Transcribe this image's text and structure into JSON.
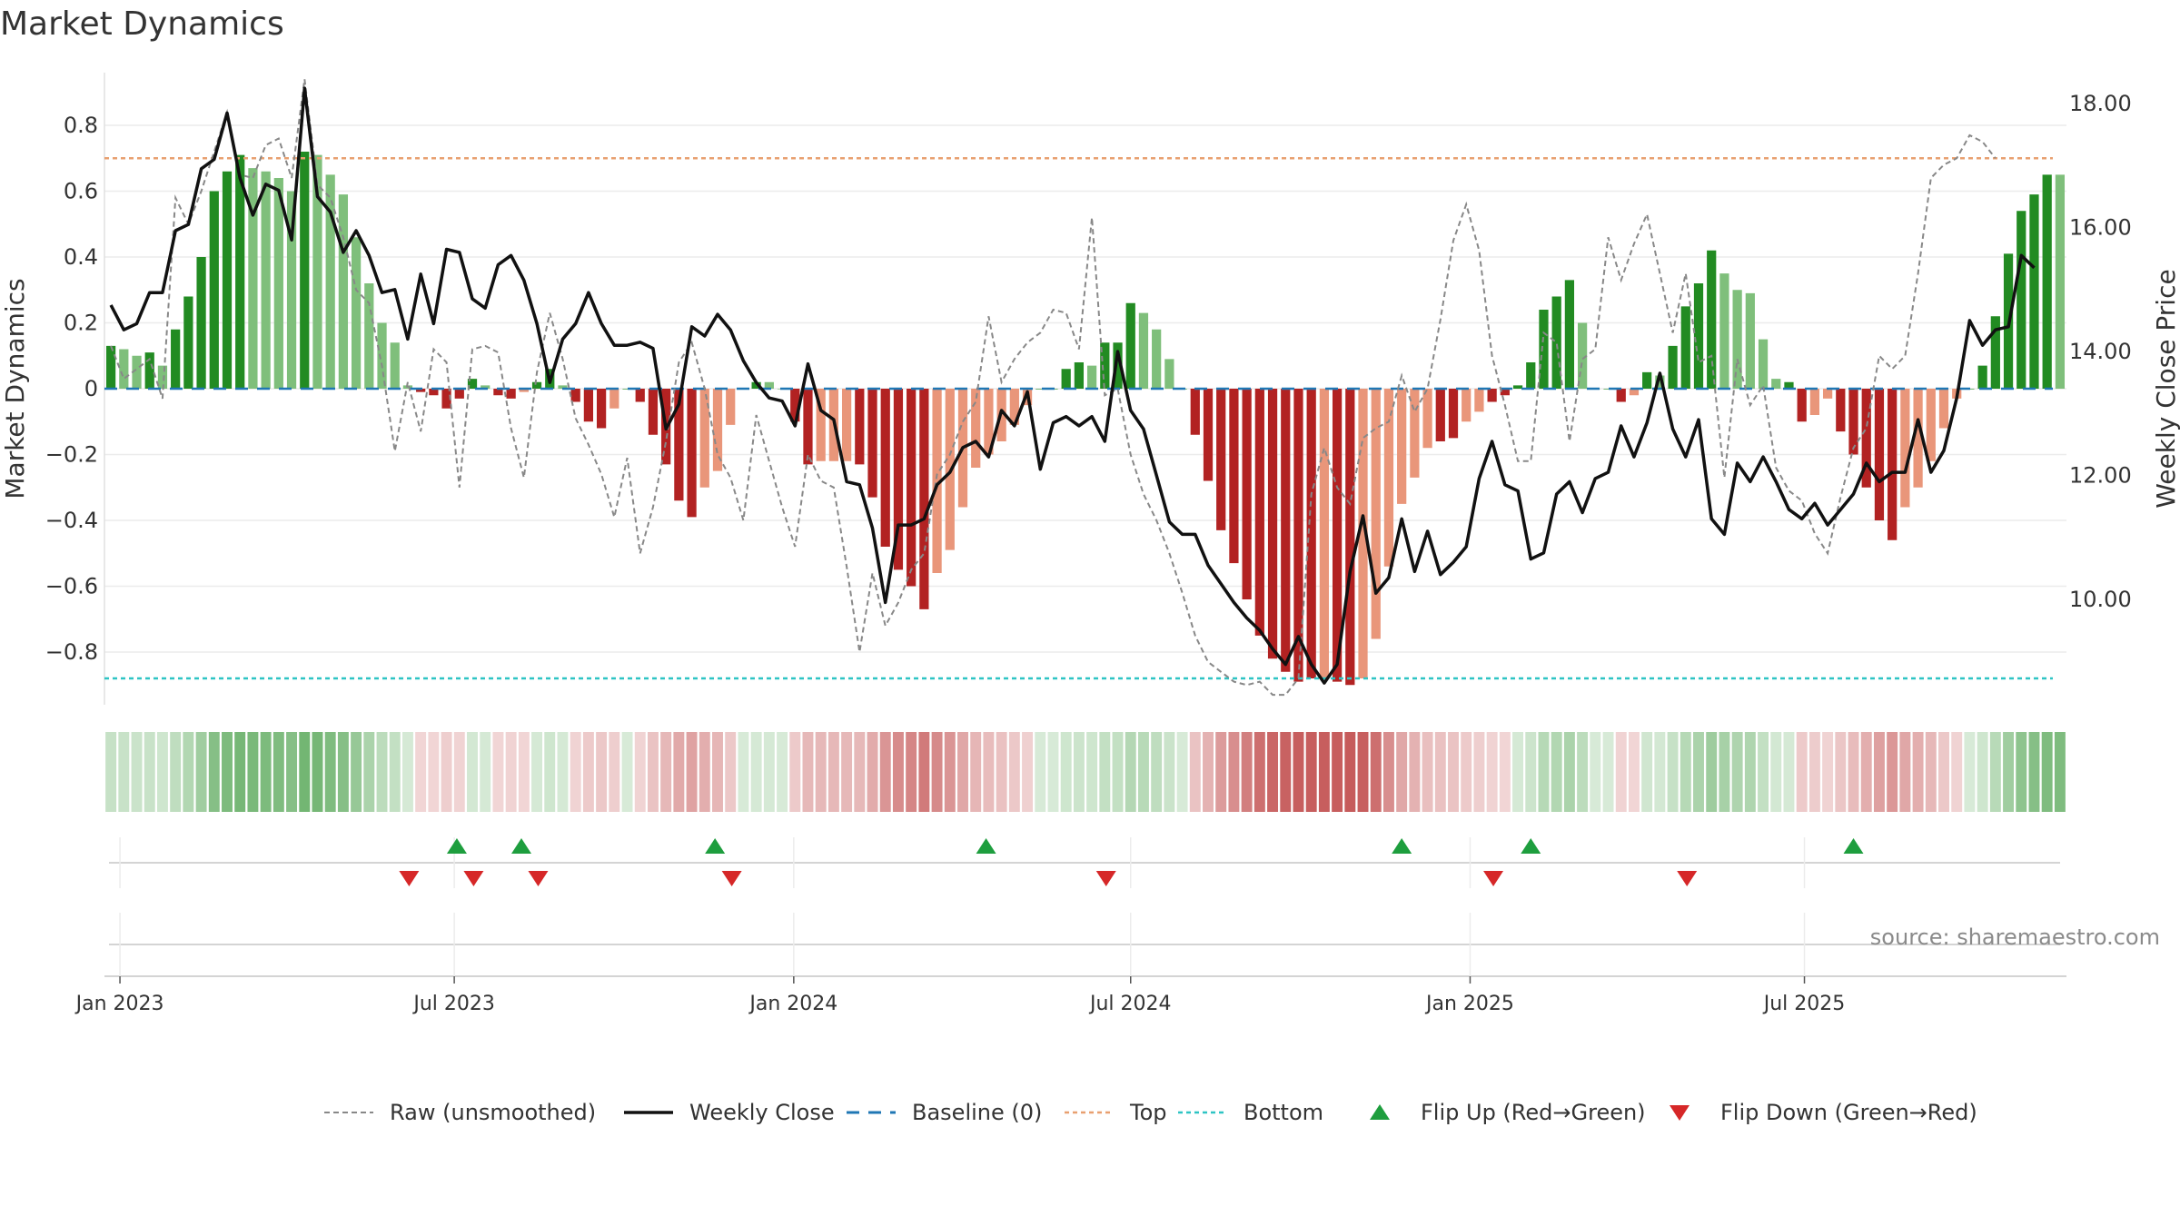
{
  "title": "Market Dynamics",
  "source": "source: sharemaestro.com",
  "chart_data": {
    "type": "bar",
    "left_axis": {
      "label": "Market Dynamics",
      "ticks": [
        "0.8",
        "0.6",
        "0.4",
        "0.2",
        "0",
        "−0.2",
        "−0.4",
        "−0.6",
        "−0.8"
      ],
      "tick_values": [
        0.8,
        0.6,
        0.4,
        0.2,
        0,
        -0.2,
        -0.4,
        -0.6,
        -0.8
      ],
      "range": [
        -0.96,
        0.96
      ]
    },
    "right_axis": {
      "label": "Weekly Close Price",
      "ticks": [
        "18.00",
        "16.00",
        "14.00",
        "12.00",
        "10.00"
      ],
      "tick_values": [
        18,
        16,
        14,
        12,
        10
      ],
      "range": [
        8.3,
        18.5
      ]
    },
    "x_ticks": [
      "Jan 2023",
      "Jul 2023",
      "Jan 2024",
      "Jul 2024",
      "Jan 2025",
      "Jul 2025"
    ],
    "x_tick_weeks": [
      0.7,
      26.6,
      52.9,
      79.0,
      105.3,
      131.2
    ],
    "top_line": 0.7,
    "bottom_line": -0.88,
    "grid": true,
    "legend_position": "bottom",
    "colors": {
      "strong_up": "#228b22",
      "weak_up": "#7fbf7b",
      "strong_down": "#b22222",
      "weak_down": "#e9967a",
      "raw": "#888888",
      "close": "#111111",
      "baseline": "#1f77b4",
      "top": "#e8a070",
      "bottom": "#2ec4c4",
      "flip_up": "#1e9e3e",
      "flip_down": "#d62728"
    },
    "bars": [
      0.13,
      0.12,
      0.1,
      0.11,
      0.07,
      0.18,
      0.28,
      0.4,
      0.6,
      0.66,
      0.71,
      0.67,
      0.66,
      0.64,
      0.6,
      0.72,
      0.71,
      0.65,
      0.59,
      0.46,
      0.32,
      0.2,
      0.14,
      0.01,
      -0.01,
      -0.02,
      -0.06,
      -0.03,
      0.03,
      0.01,
      -0.02,
      -0.03,
      -0.01,
      0.02,
      0.06,
      0.01,
      -0.04,
      -0.1,
      -0.12,
      -0.06,
      0.0,
      -0.04,
      -0.14,
      -0.23,
      -0.34,
      -0.39,
      -0.3,
      -0.25,
      -0.11,
      0.0,
      0.02,
      0.02,
      0.0,
      -0.1,
      -0.23,
      -0.22,
      -0.22,
      -0.22,
      -0.23,
      -0.33,
      -0.48,
      -0.55,
      -0.6,
      -0.67,
      -0.56,
      -0.49,
      -0.36,
      -0.24,
      -0.2,
      -0.16,
      -0.11,
      -0.05,
      0.0,
      0.0,
      0.06,
      0.08,
      0.07,
      0.14,
      0.14,
      0.26,
      0.23,
      0.18,
      0.09,
      0.0,
      -0.14,
      -0.28,
      -0.43,
      -0.53,
      -0.64,
      -0.75,
      -0.82,
      -0.86,
      -0.89,
      -0.88,
      -0.88,
      -0.89,
      -0.9,
      -0.88,
      -0.76,
      -0.54,
      -0.35,
      -0.27,
      -0.18,
      -0.16,
      -0.15,
      -0.1,
      -0.07,
      -0.04,
      -0.02,
      0.01,
      0.08,
      0.24,
      0.28,
      0.33,
      0.2,
      0.0,
      0.0,
      -0.04,
      -0.02,
      0.05,
      0.04,
      0.13,
      0.25,
      0.32,
      0.42,
      0.35,
      0.3,
      0.29,
      0.15,
      0.03,
      0.02,
      -0.1,
      -0.08,
      -0.03,
      -0.13,
      -0.2,
      -0.3,
      -0.4,
      -0.46,
      -0.36,
      -0.3,
      -0.22,
      -0.12,
      -0.03,
      0.0,
      0.07,
      0.22,
      0.41,
      0.54,
      0.59,
      0.65,
      0.65
    ],
    "bar_strong": [
      1,
      0,
      0,
      1,
      0,
      1,
      1,
      1,
      1,
      1,
      1,
      0,
      0,
      0,
      0,
      1,
      0,
      0,
      0,
      0,
      0,
      0,
      0,
      0,
      1,
      1,
      1,
      1,
      1,
      0,
      1,
      1,
      0,
      1,
      1,
      0,
      1,
      1,
      1,
      0,
      1,
      1,
      1,
      1,
      1,
      1,
      0,
      0,
      0,
      1,
      1,
      0,
      0,
      1,
      1,
      0,
      0,
      0,
      1,
      1,
      1,
      1,
      1,
      1,
      0,
      0,
      0,
      0,
      0,
      0,
      0,
      0,
      1,
      1,
      1,
      1,
      0,
      1,
      1,
      1,
      0,
      0,
      0,
      1,
      1,
      1,
      1,
      1,
      1,
      1,
      1,
      1,
      1,
      1,
      0,
      1,
      1,
      0,
      0,
      0,
      0,
      0,
      0,
      1,
      1,
      0,
      0,
      1,
      1,
      1,
      1,
      1,
      1,
      1,
      0,
      0,
      1,
      1,
      0,
      1,
      0,
      1,
      1,
      1,
      1,
      0,
      0,
      0,
      0,
      0,
      1,
      1,
      0,
      0,
      1,
      1,
      1,
      1,
      1,
      0,
      0,
      0,
      0,
      0,
      1,
      1,
      1,
      1,
      1,
      1,
      1
    ],
    "raw": [
      0.13,
      0.03,
      0.06,
      0.09,
      -0.03,
      0.58,
      0.5,
      0.6,
      0.72,
      0.84,
      0.65,
      0.64,
      0.74,
      0.76,
      0.64,
      0.94,
      0.62,
      0.58,
      0.46,
      0.3,
      0.26,
      0.07,
      -0.19,
      0.02,
      -0.13,
      0.12,
      0.08,
      -0.3,
      0.12,
      0.13,
      0.11,
      -0.12,
      -0.27,
      0.05,
      0.23,
      0.09,
      -0.09,
      -0.17,
      -0.26,
      -0.39,
      -0.21,
      -0.5,
      -0.36,
      -0.16,
      0.08,
      0.14,
      0.0,
      -0.2,
      -0.27,
      -0.4,
      -0.08,
      -0.22,
      -0.36,
      -0.48,
      -0.2,
      -0.28,
      -0.3,
      -0.54,
      -0.8,
      -0.56,
      -0.72,
      -0.65,
      -0.55,
      -0.5,
      -0.26,
      -0.2,
      -0.1,
      -0.04,
      0.22,
      0.02,
      0.09,
      0.14,
      0.17,
      0.24,
      0.23,
      0.12,
      0.52,
      -0.02,
      0.0,
      -0.2,
      -0.32,
      -0.4,
      -0.5,
      -0.62,
      -0.75,
      -0.83,
      -0.86,
      -0.89,
      -0.9,
      -0.89,
      -0.93,
      -0.93,
      -0.88,
      -0.32,
      -0.18,
      -0.3,
      -0.35,
      -0.15,
      -0.12,
      -0.1,
      0.04,
      -0.07,
      0.0,
      0.21,
      0.45,
      0.56,
      0.42,
      0.1,
      -0.05,
      -0.22,
      -0.22,
      0.17,
      0.14,
      -0.16,
      0.09,
      0.12,
      0.46,
      0.33,
      0.44,
      0.53,
      0.35,
      0.17,
      0.35,
      0.08,
      0.1,
      -0.27,
      0.09,
      -0.05,
      0.01,
      -0.24,
      -0.31,
      -0.34,
      -0.44,
      -0.5,
      -0.33,
      -0.18,
      -0.12,
      0.1,
      0.06,
      0.1,
      0.35,
      0.64,
      0.68,
      0.7,
      0.77,
      0.75,
      0.7
    ],
    "close": [
      14.75,
      14.35,
      14.45,
      14.95,
      14.95,
      15.95,
      16.05,
      16.95,
      17.1,
      17.85,
      16.8,
      16.2,
      16.7,
      16.6,
      15.8,
      18.25,
      16.5,
      16.25,
      15.6,
      15.95,
      15.55,
      14.95,
      15.0,
      14.2,
      15.25,
      14.45,
      15.65,
      15.6,
      14.85,
      14.7,
      15.4,
      15.55,
      15.15,
      14.45,
      13.5,
      14.2,
      14.45,
      14.95,
      14.45,
      14.1,
      14.1,
      14.15,
      14.05,
      12.75,
      13.15,
      14.4,
      14.25,
      14.6,
      14.35,
      13.85,
      13.5,
      13.25,
      13.2,
      12.8,
      13.8,
      13.05,
      12.9,
      11.9,
      11.85,
      11.15,
      9.95,
      11.2,
      11.2,
      11.3,
      11.85,
      12.05,
      12.45,
      12.55,
      12.3,
      13.05,
      12.8,
      13.35,
      12.1,
      12.85,
      12.95,
      12.8,
      12.95,
      12.55,
      14.0,
      13.05,
      12.75,
      12.0,
      11.25,
      11.05,
      11.05,
      10.55,
      10.25,
      9.95,
      9.7,
      9.5,
      9.2,
      8.95,
      9.4,
      8.95,
      8.65,
      8.95,
      10.45,
      11.35,
      10.1,
      10.35,
      11.3,
      10.45,
      11.1,
      10.4,
      10.6,
      10.85,
      11.95,
      12.55,
      11.85,
      11.75,
      10.65,
      10.75,
      11.7,
      11.9,
      11.4,
      11.95,
      12.05,
      12.8,
      12.3,
      12.85,
      13.65,
      12.75,
      12.3,
      12.9,
      11.3,
      11.05,
      12.2,
      11.9,
      12.3,
      11.9,
      11.45,
      11.3,
      11.55,
      11.2,
      11.45,
      11.7,
      12.2,
      11.9,
      12.05,
      12.05,
      12.9,
      12.05,
      12.4,
      13.25,
      14.5,
      14.1,
      14.35,
      14.4,
      15.55,
      15.35
    ],
    "flip_up_weeks": [
      26.8,
      31.8,
      46.8,
      67.8,
      100.0,
      110.0,
      135.0
    ],
    "flip_down_weeks": [
      23.1,
      28.1,
      33.1,
      48.1,
      77.1,
      107.1,
      122.1
    ],
    "legend": [
      {
        "key": "raw",
        "label": "Raw (unsmoothed)"
      },
      {
        "key": "close",
        "label": "Weekly Close"
      },
      {
        "key": "baseline",
        "label": "Baseline (0)"
      },
      {
        "key": "top",
        "label": "Top"
      },
      {
        "key": "bottom",
        "label": "Bottom"
      },
      {
        "key": "flip_up",
        "label": "Flip Up (Red→Green)"
      },
      {
        "key": "flip_down",
        "label": "Flip Down (Green→Red)"
      }
    ]
  }
}
